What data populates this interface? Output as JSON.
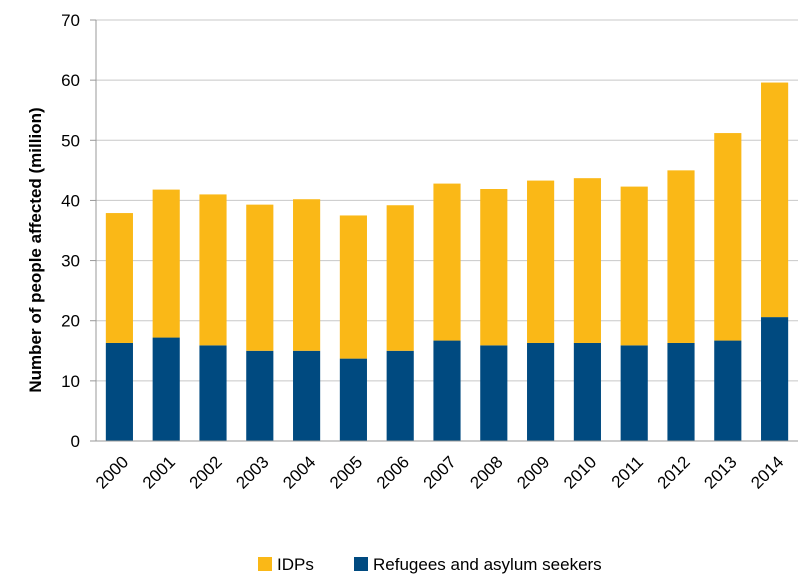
{
  "chart_data": {
    "type": "bar",
    "stacked": true,
    "categories": [
      "2000",
      "2001",
      "2002",
      "2003",
      "2004",
      "2005",
      "2006",
      "2007",
      "2008",
      "2009",
      "2010",
      "2011",
      "2012",
      "2013",
      "2014"
    ],
    "series": [
      {
        "name": "Refugees and asylum seekers",
        "color": "#004a80",
        "values": [
          16.3,
          17.2,
          15.9,
          15.0,
          15.0,
          13.7,
          15.0,
          16.7,
          15.9,
          16.3,
          16.3,
          15.9,
          16.3,
          16.7,
          20.6
        ]
      },
      {
        "name": "IDPs",
        "color": "#fab817",
        "values": [
          21.6,
          24.6,
          25.1,
          24.3,
          25.2,
          23.8,
          24.2,
          26.1,
          26.0,
          27.0,
          27.4,
          26.4,
          28.7,
          34.5,
          39.0
        ]
      }
    ],
    "legend_order": [
      "IDPs",
      "Refugees and asylum seekers"
    ],
    "ylabel": "Number of people affected (million)",
    "xlabel": "",
    "ylim": [
      0,
      70
    ],
    "yticks": [
      0,
      10,
      20,
      30,
      40,
      50,
      60,
      70
    ],
    "grid": true,
    "legend_position": "bottom"
  }
}
